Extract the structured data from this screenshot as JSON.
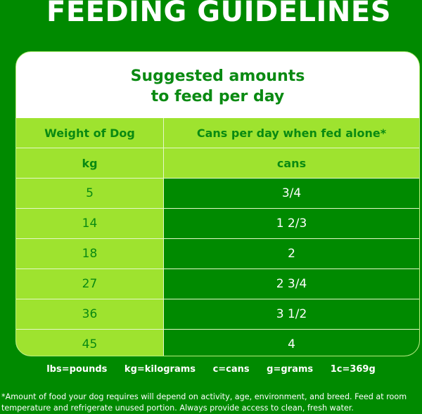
{
  "title": "FEEDING GUIDELINES",
  "card": {
    "subtitle_line1": "Suggested amounts",
    "subtitle_line2": "to feed per day",
    "headers": [
      {
        "left": "Weight of Dog",
        "right": "Cans per day when fed alone*"
      },
      {
        "left": "kg",
        "right": "cans"
      }
    ],
    "rows": [
      {
        "weight": "5",
        "cans": "3/4"
      },
      {
        "weight": "14",
        "cans": "1 2/3"
      },
      {
        "weight": "18",
        "cans": "2"
      },
      {
        "weight": "27",
        "cans": "2 3/4"
      },
      {
        "weight": "36",
        "cans": "3 1/2"
      },
      {
        "weight": "45",
        "cans": "4"
      }
    ]
  },
  "legend": [
    "lbs=pounds",
    "kg=kilograms",
    "c=cans",
    "g=grams",
    "1c=369g"
  ],
  "footnote": "*Amount of food your dog requires will depend on activity, age, environment, and breed. Feed at room temperature and refrigerate unused portion. Always provide access to clean, fresh water.",
  "colors": {
    "background": "#008a00",
    "light_green": "#9ee32f",
    "text_green": "#0a8a12",
    "white": "#ffffff"
  }
}
